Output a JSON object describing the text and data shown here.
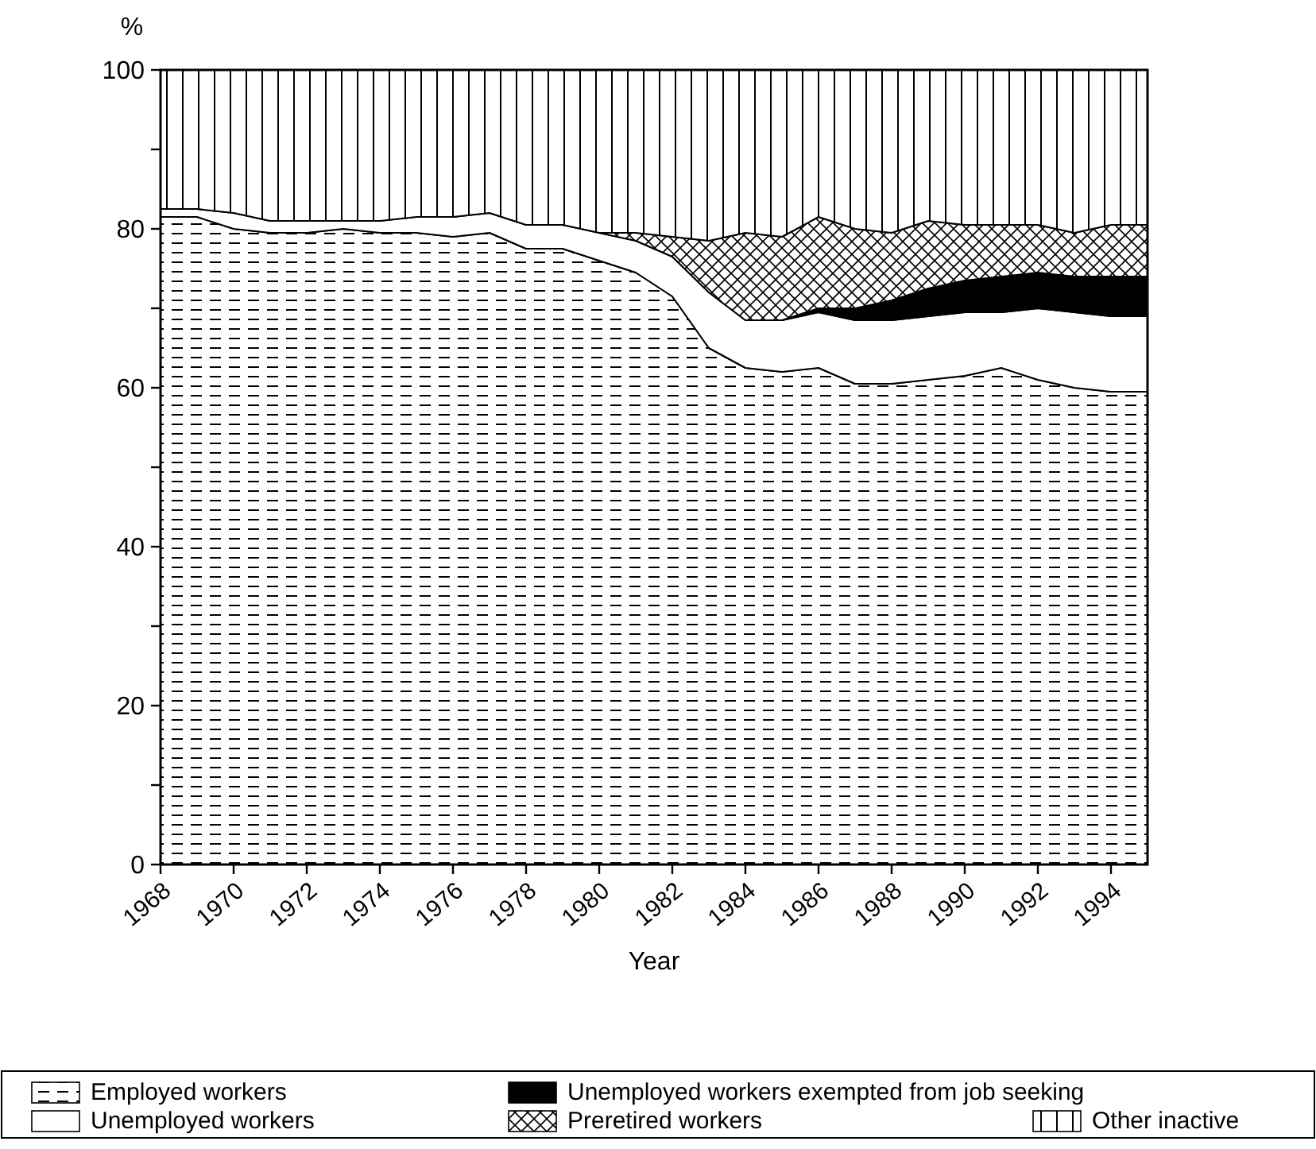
{
  "chart_data": {
    "type": "area",
    "stacked": true,
    "xlabel": "Year",
    "ylabel": "%",
    "x": [
      1968,
      1969,
      1970,
      1971,
      1972,
      1973,
      1974,
      1975,
      1976,
      1977,
      1978,
      1979,
      1980,
      1981,
      1982,
      1983,
      1984,
      1985,
      1986,
      1987,
      1988,
      1989,
      1990,
      1991,
      1992,
      1993,
      1994,
      1995
    ],
    "xlim": [
      1968,
      1995
    ],
    "xticks": [
      1968,
      1970,
      1972,
      1974,
      1976,
      1978,
      1980,
      1982,
      1984,
      1986,
      1988,
      1990,
      1992,
      1994
    ],
    "ylim": [
      0,
      100
    ],
    "yticks": [
      0,
      {
        "value": 10,
        "label": null
      },
      20,
      {
        "value": 30,
        "label": null
      },
      40,
      {
        "value": 50,
        "label": null
      },
      60,
      {
        "value": 70,
        "label": null
      },
      80,
      {
        "value": 90,
        "label": null
      },
      100
    ],
    "legend": "bottom",
    "grid": false,
    "series": [
      {
        "name": "Employed workers",
        "color": "#000000",
        "values": [
          81.5,
          81.5,
          80,
          79.5,
          79.5,
          80,
          79.5,
          79.5,
          79,
          79.5,
          77.5,
          77.5,
          76,
          74.5,
          71.5,
          65,
          62.5,
          62,
          62.5,
          60.5,
          60.5,
          61,
          61.5,
          62.5,
          61,
          60,
          59.5,
          59.5
        ]
      },
      {
        "name": "Unemployed workers",
        "color": "#ffffff",
        "values": [
          1,
          1,
          2,
          1.5,
          1.5,
          1,
          1.5,
          2,
          2.5,
          2.5,
          3,
          3,
          3.5,
          4,
          5,
          7,
          6,
          6.5,
          7,
          8,
          8,
          8,
          8,
          7,
          9,
          9.5,
          9.5,
          9.5
        ]
      },
      {
        "name": "Unemployed workers exempted from job seeking",
        "color": "#000000",
        "values": [
          null,
          null,
          null,
          null,
          null,
          null,
          null,
          null,
          null,
          null,
          null,
          null,
          null,
          null,
          null,
          null,
          null,
          0,
          0.5,
          1.5,
          2.5,
          3.5,
          4,
          4.5,
          4.5,
          4.5,
          5,
          5
        ]
      },
      {
        "name": "Preretired workers",
        "color": "#000000",
        "values": [
          null,
          null,
          null,
          null,
          null,
          null,
          null,
          null,
          null,
          null,
          null,
          null,
          0,
          1,
          2.5,
          6.5,
          11,
          10.5,
          11.5,
          10,
          8.5,
          8.5,
          7,
          6.5,
          6,
          5.5,
          6.5,
          6.5
        ]
      },
      {
        "name": "Other inactive",
        "color": "#000000",
        "values": [
          17.5,
          17.5,
          18,
          19,
          19,
          19,
          19,
          18.5,
          18.5,
          18,
          19.5,
          19.5,
          20.5,
          20.5,
          21,
          21.5,
          20.5,
          21,
          18.5,
          20,
          20.5,
          19,
          19.5,
          19.5,
          19.5,
          20.5,
          19.5,
          19.5
        ]
      }
    ]
  }
}
